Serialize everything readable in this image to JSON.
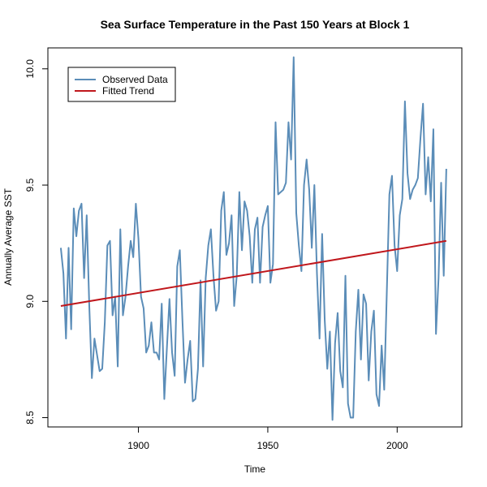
{
  "chart_data": {
    "type": "line",
    "title": "Sea Surface Temperature in the Past 150 Years at Block 1",
    "xlabel": "Time",
    "ylabel": "Annually Average SST",
    "xlim": [
      1865,
      2025
    ],
    "ylim": [
      8.46,
      10.09
    ],
    "x_ticks": [
      1900,
      1950,
      2000
    ],
    "y_ticks": [
      8.5,
      9.0,
      9.5,
      10.0
    ],
    "x_tick_labels": [
      "1900",
      "1950",
      "2000"
    ],
    "y_tick_labels": [
      "8.5",
      "9.0",
      "9.5",
      "10.0"
    ],
    "grid": false,
    "legend_position": "top-left",
    "legend": [
      {
        "label": "Observed Data",
        "color": "#5b8db8"
      },
      {
        "label": "Fitted Trend",
        "color": "#c0171c"
      }
    ],
    "series": [
      {
        "name": "Observed Data",
        "color": "#5b8db8",
        "start_year": 1870,
        "values": [
          9.23,
          9.12,
          8.84,
          9.23,
          8.88,
          9.4,
          9.28,
          9.39,
          9.42,
          9.1,
          9.37,
          8.98,
          8.67,
          8.84,
          8.77,
          8.7,
          8.71,
          8.91,
          9.24,
          9.26,
          8.94,
          9.02,
          8.72,
          9.31,
          8.94,
          9.02,
          9.15,
          9.26,
          9.19,
          9.42,
          9.27,
          9.02,
          8.97,
          8.78,
          8.81,
          8.91,
          8.78,
          8.78,
          8.75,
          8.99,
          8.58,
          8.8,
          9.01,
          8.78,
          8.68,
          9.15,
          9.22,
          8.92,
          8.65,
          8.75,
          8.83,
          8.57,
          8.58,
          8.71,
          9.09,
          8.72,
          9.1,
          9.24,
          9.31,
          9.11,
          8.96,
          9.0,
          9.39,
          9.47,
          9.2,
          9.25,
          9.37,
          8.98,
          9.11,
          9.47,
          9.22,
          9.43,
          9.39,
          9.28,
          9.08,
          9.31,
          9.36,
          9.08,
          9.32,
          9.37,
          9.41,
          9.08,
          9.16,
          9.77,
          9.46,
          9.47,
          9.48,
          9.51,
          9.77,
          9.61,
          10.05,
          9.38,
          9.24,
          9.13,
          9.5,
          9.61,
          9.48,
          9.23,
          9.5,
          9.12,
          8.84,
          9.29,
          8.92,
          8.71,
          8.87,
          8.49,
          8.82,
          8.95,
          8.7,
          8.63,
          9.11,
          8.56,
          8.5,
          8.5,
          8.87,
          9.05,
          8.75,
          9.03,
          8.99,
          8.66,
          8.87,
          8.96,
          8.6,
          8.55,
          8.81,
          8.62,
          9.04,
          9.46,
          9.54,
          9.24,
          9.13,
          9.37,
          9.44,
          9.86,
          9.55,
          9.44,
          9.48,
          9.5,
          9.53,
          9.7,
          9.85,
          9.46,
          9.62,
          9.43,
          9.74,
          8.86,
          9.1,
          9.51,
          9.11,
          9.57
        ]
      },
      {
        "name": "Fitted Trend",
        "color": "#c0171c",
        "x": [
          1870,
          2019
        ],
        "values": [
          8.98,
          9.26
        ]
      }
    ]
  }
}
